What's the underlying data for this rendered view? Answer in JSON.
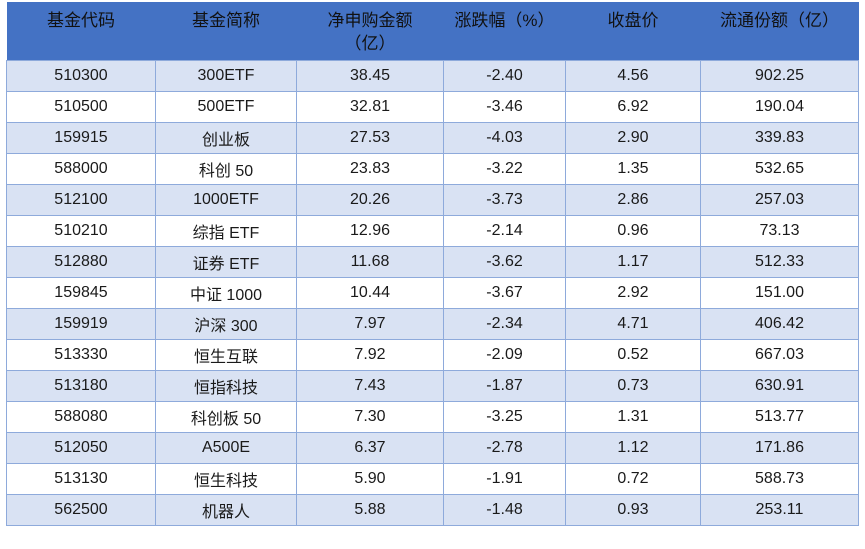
{
  "colors": {
    "header_bg": "#4472C4",
    "header_text": "#111111",
    "stripe_bg": "#D9E2F3",
    "row_bg": "#FFFFFF",
    "border": "#8EAADB",
    "text": "#1A1A1A"
  },
  "chart_data": {
    "type": "table",
    "columns": [
      {
        "key": "fund-code",
        "label": "基金代码",
        "line1": "基金代码",
        "line2": ""
      },
      {
        "key": "fund-name",
        "label": "基金简称",
        "line1": "基金简称",
        "line2": ""
      },
      {
        "key": "net-subscription",
        "label": "净申购金额（亿）",
        "line1": "净申购金额",
        "line2": "（亿）"
      },
      {
        "key": "change-percent",
        "label": "涨跌幅（%）",
        "line1": "涨跌幅（%）",
        "line2": ""
      },
      {
        "key": "close-price",
        "label": "收盘价",
        "line1": "收盘价",
        "line2": ""
      },
      {
        "key": "float-shares",
        "label": "流通份额（亿）",
        "line1": "流通份额（亿）",
        "line2": ""
      }
    ],
    "rows": [
      [
        "510300",
        "300ETF",
        "38.45",
        "-2.40",
        "4.56",
        "902.25"
      ],
      [
        "510500",
        "500ETF",
        "32.81",
        "-3.46",
        "6.92",
        "190.04"
      ],
      [
        "159915",
        "创业板",
        "27.53",
        "-4.03",
        "2.90",
        "339.83"
      ],
      [
        "588000",
        "科创 50",
        "23.83",
        "-3.22",
        "1.35",
        "532.65"
      ],
      [
        "512100",
        "1000ETF",
        "20.26",
        "-3.73",
        "2.86",
        "257.03"
      ],
      [
        "510210",
        "综指 ETF",
        "12.96",
        "-2.14",
        "0.96",
        "73.13"
      ],
      [
        "512880",
        "证券 ETF",
        "11.68",
        "-3.62",
        "1.17",
        "512.33"
      ],
      [
        "159845",
        "中证 1000",
        "10.44",
        "-3.67",
        "2.92",
        "151.00"
      ],
      [
        "159919",
        "沪深 300",
        "7.97",
        "-2.34",
        "4.71",
        "406.42"
      ],
      [
        "513330",
        "恒生互联",
        "7.92",
        "-2.09",
        "0.52",
        "667.03"
      ],
      [
        "513180",
        "恒指科技",
        "7.43",
        "-1.87",
        "0.73",
        "630.91"
      ],
      [
        "588080",
        "科创板 50",
        "7.30",
        "-3.25",
        "1.31",
        "513.77"
      ],
      [
        "512050",
        "A500E",
        "6.37",
        "-2.78",
        "1.12",
        "171.86"
      ],
      [
        "513130",
        "恒生科技",
        "5.90",
        "-1.91",
        "0.72",
        "588.73"
      ],
      [
        "562500",
        "机器人",
        "5.88",
        "-1.48",
        "0.93",
        "253.11"
      ]
    ]
  }
}
